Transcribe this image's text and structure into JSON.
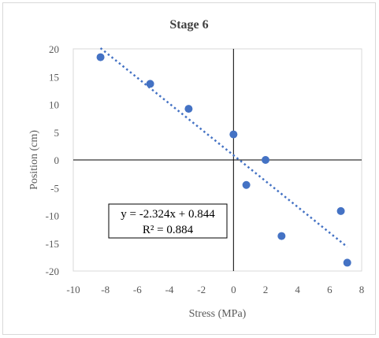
{
  "chart_data": {
    "type": "scatter",
    "title": "Stage 6",
    "xlabel": "Stress (MPa)",
    "ylabel": "Position (cm)",
    "xlim": [
      -10,
      8
    ],
    "ylim": [
      -20,
      20
    ],
    "x_ticks": [
      -10,
      -8,
      -6,
      -4,
      -2,
      0,
      2,
      4,
      6,
      8
    ],
    "y_ticks": [
      -20,
      -15,
      -10,
      -5,
      0,
      5,
      10,
      15,
      20
    ],
    "grid": false,
    "legend": "none",
    "marker_color": "#4472c4",
    "series": [
      {
        "x": [
          -8.3,
          -5.2,
          -2.8,
          0.0,
          2.0,
          0.8,
          3.0,
          6.7,
          7.1
        ],
        "y": [
          18.5,
          13.7,
          9.2,
          4.6,
          0.0,
          -4.5,
          -13.7,
          -9.2,
          -18.5
        ]
      }
    ],
    "trendline": {
      "type": "linear",
      "slope": -2.324,
      "intercept": 0.844,
      "x_range": [
        -8.3,
        7.1
      ],
      "style": "dotted",
      "color": "#4472c4"
    },
    "annotation": {
      "equation": "y = -2.324x + 0.844",
      "r_squared": "R² = 0.884"
    }
  }
}
